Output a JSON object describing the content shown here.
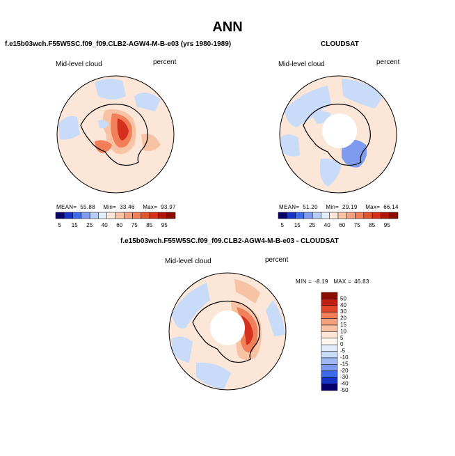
{
  "title": "ANN",
  "colors": {
    "blue_dark": "#08006b",
    "blue": "#2a45d8",
    "blue_mid": "#7f9bef",
    "blue_light": "#c8dcf9",
    "cream": "#fce6d8",
    "peach": "#f8c3a4",
    "orange": "#f07f5a",
    "red": "#d5301d",
    "dark_red": "#8d0c00",
    "land_outline": "#000000"
  },
  "panels": [
    {
      "title": "f.e15b03wch.F55W5SC.f09_f09.CLB2-AGW4-M-B-e03 (yrs 1980-1989)",
      "variable": "Mid-level cloud",
      "units": "percent",
      "stats": {
        "mean_label": "MEAN=",
        "mean": "55.88",
        "min_label": "Min=",
        "min": "33.46",
        "max_label": "Max=",
        "max": "93.97"
      },
      "colorbar_labels": [
        "5",
        "15",
        "25",
        "40",
        "60",
        "75",
        "85",
        "95"
      ]
    },
    {
      "title": "CLOUDSAT",
      "variable": "Mid-level cloud",
      "units": "percent",
      "stats": {
        "mean_label": "MEAN=",
        "mean": "51.20",
        "min_label": "Min=",
        "min": "29.19",
        "max_label": "Max=",
        "max": "66.14"
      },
      "colorbar_labels": [
        "5",
        "15",
        "25",
        "40",
        "60",
        "75",
        "85",
        "95"
      ]
    },
    {
      "title": "f.e15b03wch.F55W5SC.f09_f09.CLB2-AGW4-M-B-e03 - CLOUDSAT",
      "variable": "Mid-level cloud",
      "units": "percent",
      "minmax": {
        "min_label": "MIN =",
        "min": "-8.19",
        "max_label": "MAX =",
        "max": "46.83"
      },
      "colorbar_labels": [
        "50",
        "40",
        "30",
        "20",
        "15",
        "10",
        "5",
        "0",
        "-5",
        "-10",
        "-15",
        "-20",
        "-30",
        "-40",
        "-50"
      ]
    }
  ],
  "chart_data": [
    {
      "type": "heatmap",
      "projection": "south polar stereographic",
      "variable": "Mid-level cloud",
      "units": "percent",
      "mean": 55.88,
      "min": 33.46,
      "max": 93.97,
      "levels": [
        5,
        15,
        25,
        40,
        60,
        75,
        85,
        95
      ]
    },
    {
      "type": "heatmap",
      "projection": "south polar stereographic",
      "variable": "Mid-level cloud",
      "units": "percent",
      "mean": 51.2,
      "min": 29.19,
      "max": 66.14,
      "levels": [
        5,
        15,
        25,
        40,
        60,
        75,
        85,
        95
      ]
    },
    {
      "type": "heatmap",
      "projection": "south polar stereographic",
      "variable": "Mid-level cloud",
      "units": "percent",
      "min": -8.19,
      "max": 46.83,
      "levels": [
        -50,
        -40,
        -30,
        -20,
        -15,
        -10,
        -5,
        0,
        5,
        10,
        15,
        20,
        30,
        40,
        50
      ]
    }
  ]
}
